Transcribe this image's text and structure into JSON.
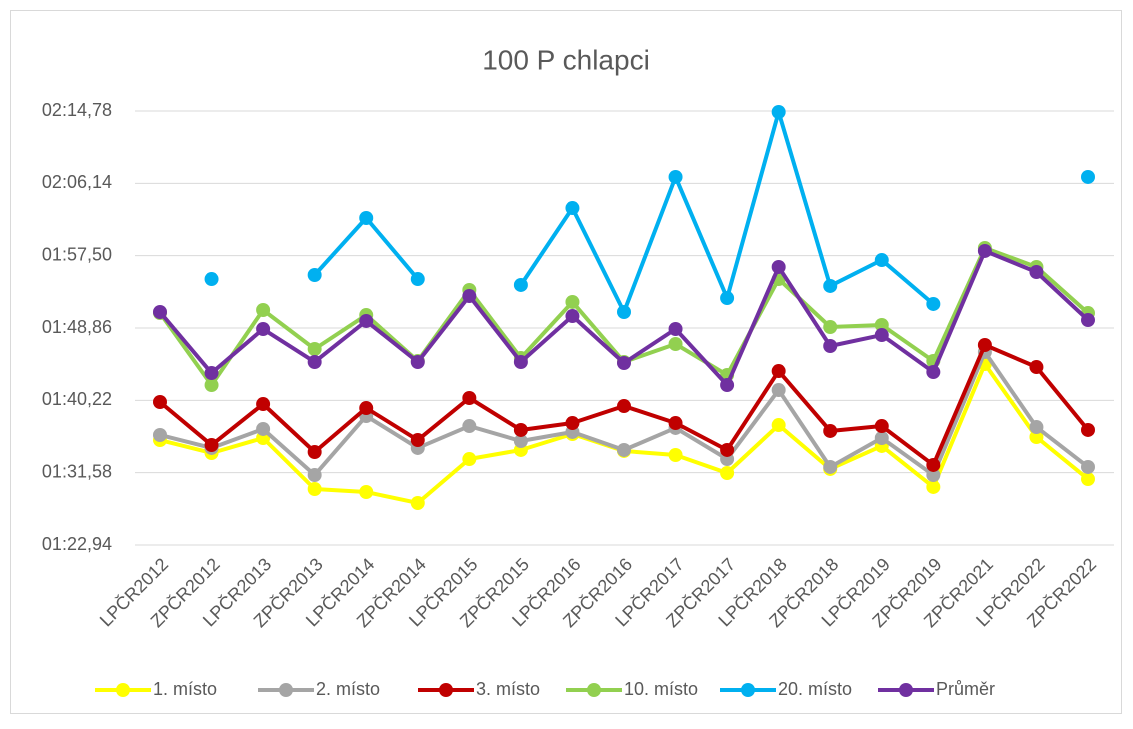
{
  "chart_data": {
    "type": "line",
    "title": "100 P chlapci",
    "categories": [
      "LPČR2012",
      "ZPČR2012",
      "LPČR2013",
      "ZPČR2013",
      "LPČR2014",
      "ZPČR2014",
      "LPČR2015",
      "ZPČR2015",
      "LPČR2016",
      "ZPČR2016",
      "LPČR2017",
      "ZPČR2017",
      "LPČR2018",
      "ZPČR2018",
      "LPČR2019",
      "ZPČR2019",
      "ZPČR2021",
      "LPČR2022",
      "ZPČR2022"
    ],
    "series": [
      {
        "name": "1. místo",
        "color": "#ffff00",
        "values": [
          95.48,
          93.93,
          95.72,
          89.63,
          89.27,
          87.96,
          93.21,
          94.29,
          96.2,
          94.17,
          93.69,
          91.54,
          97.27,
          92.02,
          94.77,
          89.87,
          104.56,
          95.84,
          90.82
        ]
      },
      {
        "name": "2. místo",
        "color": "#a5a5a5",
        "values": [
          96.08,
          94.53,
          96.8,
          91.3,
          98.35,
          94.53,
          97.15,
          95.36,
          96.44,
          94.29,
          96.92,
          93.21,
          101.45,
          92.26,
          95.72,
          91.3,
          105.99,
          97.03,
          92.26
        ]
      },
      {
        "name": "3. místo",
        "color": "#c00000",
        "values": [
          100.02,
          94.88,
          99.78,
          94.05,
          99.3,
          95.48,
          100.5,
          96.68,
          97.51,
          99.54,
          97.51,
          94.29,
          103.72,
          96.56,
          97.15,
          92.5,
          106.83,
          104.2,
          96.68
        ]
      },
      {
        "name": "10. místo",
        "color": "#92d050",
        "values": [
          110.65,
          102.05,
          111.01,
          106.35,
          110.41,
          104.92,
          113.4,
          105.28,
          111.97,
          104.8,
          106.95,
          103.25,
          114.71,
          108.98,
          109.22,
          104.92,
          118.42,
          116.15,
          110.65
        ]
      },
      {
        "name": "20. místo",
        "color": "#00b0f0",
        "values": [
          null,
          114.71,
          null,
          115.19,
          122.0,
          114.71,
          null,
          114.0,
          123.19,
          110.77,
          126.9,
          112.44,
          134.66,
          113.88,
          116.98,
          111.73,
          null,
          null,
          126.9
        ]
      },
      {
        "name": "Průměr",
        "color": "#7030a0",
        "values": [
          110.77,
          103.48,
          108.74,
          104.8,
          109.7,
          104.8,
          112.68,
          104.8,
          110.29,
          104.68,
          108.74,
          102.05,
          116.15,
          106.71,
          108.02,
          103.6,
          118.06,
          115.55,
          109.81
        ]
      }
    ],
    "ylim": [
      82.94,
      134.78
    ],
    "yticks": [
      {
        "value": 82.94,
        "label": "01:22,94"
      },
      {
        "value": 91.58,
        "label": "01:31,58"
      },
      {
        "value": 100.22,
        "label": "01:40,22"
      },
      {
        "value": 108.86,
        "label": "01:48,86"
      },
      {
        "value": 117.5,
        "label": "01:57,50"
      },
      {
        "value": 126.14,
        "label": "02:06,14"
      },
      {
        "value": 134.78,
        "label": "02:14,78"
      }
    ],
    "grid": true,
    "legend": "bottom"
  }
}
